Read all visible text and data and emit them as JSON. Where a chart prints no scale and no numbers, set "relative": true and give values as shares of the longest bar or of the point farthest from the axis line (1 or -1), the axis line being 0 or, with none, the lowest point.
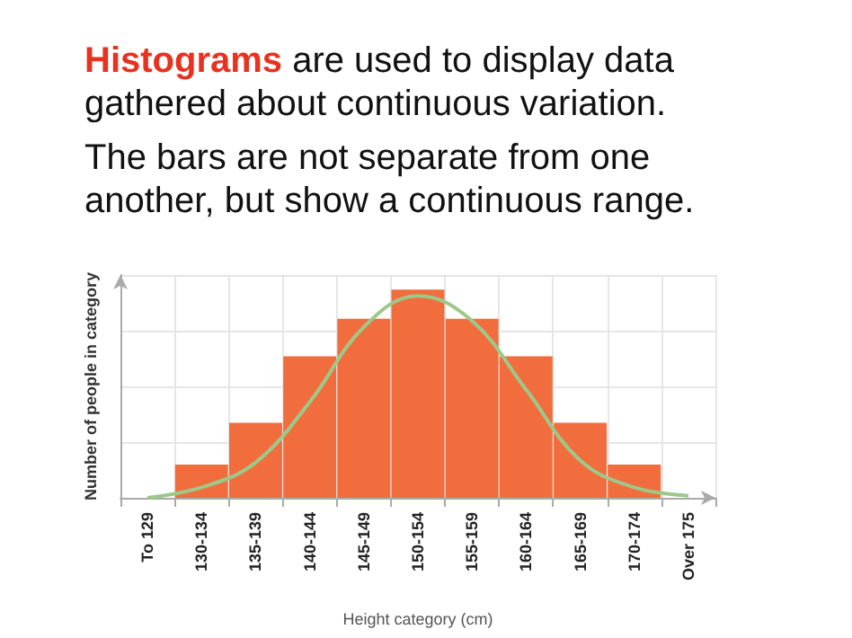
{
  "chart_data": {
    "type": "bar",
    "title": "Histograms are used to display data gathered about continuous variation.",
    "subtitle": "The bars are not separate from one another, but show a continuous range.",
    "xlabel": "Height category (cm)",
    "ylabel": "Number of people in category",
    "categories": [
      "To 129",
      "130-134",
      "135-139",
      "140-144",
      "145-149",
      "150-154",
      "155-159",
      "160-164",
      "165-169",
      "170-174",
      "Over 175"
    ],
    "relative": true,
    "grid": true,
    "series": [
      {
        "color": "#f26d3d",
        "values": [
          0,
          0.16,
          0.36,
          0.68,
          0.86,
          1,
          0.86,
          0.68,
          0.36,
          0.16,
          0
        ]
      },
      {
        "type": "line",
        "color": "#9cc98a",
        "marker": "none",
        "line_style": "solid",
        "values": [
          0,
          0.05,
          0.17,
          0.46,
          0.82,
          0.97,
          0.85,
          0.52,
          0.18,
          0.05,
          0.01
        ]
      }
    ]
  }
}
